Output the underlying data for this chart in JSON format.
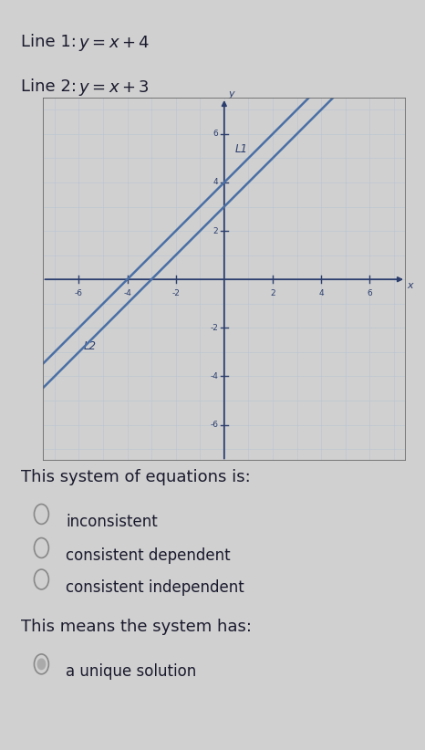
{
  "line1_slope": 1,
  "line1_intercept": 4,
  "line2_slope": 1,
  "line2_intercept": 3,
  "xlim": [
    -7,
    7
  ],
  "ylim": [
    -7,
    7
  ],
  "x_ticks": [
    -6,
    -4,
    -2,
    2,
    4,
    6
  ],
  "y_ticks": [
    -6,
    -4,
    -2,
    2,
    4,
    6
  ],
  "line_color": "#4a6fa5",
  "graph_bg": "#dde4ed",
  "grid_color": "#b8c5d0",
  "axis_color": "#2c3e6e",
  "label_L1": "L1",
  "label_L2": "L2",
  "question_text": "This system of equations is:",
  "options": [
    "inconsistent",
    "consistent dependent",
    "consistent independent"
  ],
  "conclusion_text": "This means the system has:",
  "conclusion_option": "a unique solution",
  "bg_color": "#d0d0d0",
  "text_color": "#1a1a2e",
  "radio_color": "#888888",
  "radio_fill": "#aaaaaa",
  "border_color": "#666666"
}
